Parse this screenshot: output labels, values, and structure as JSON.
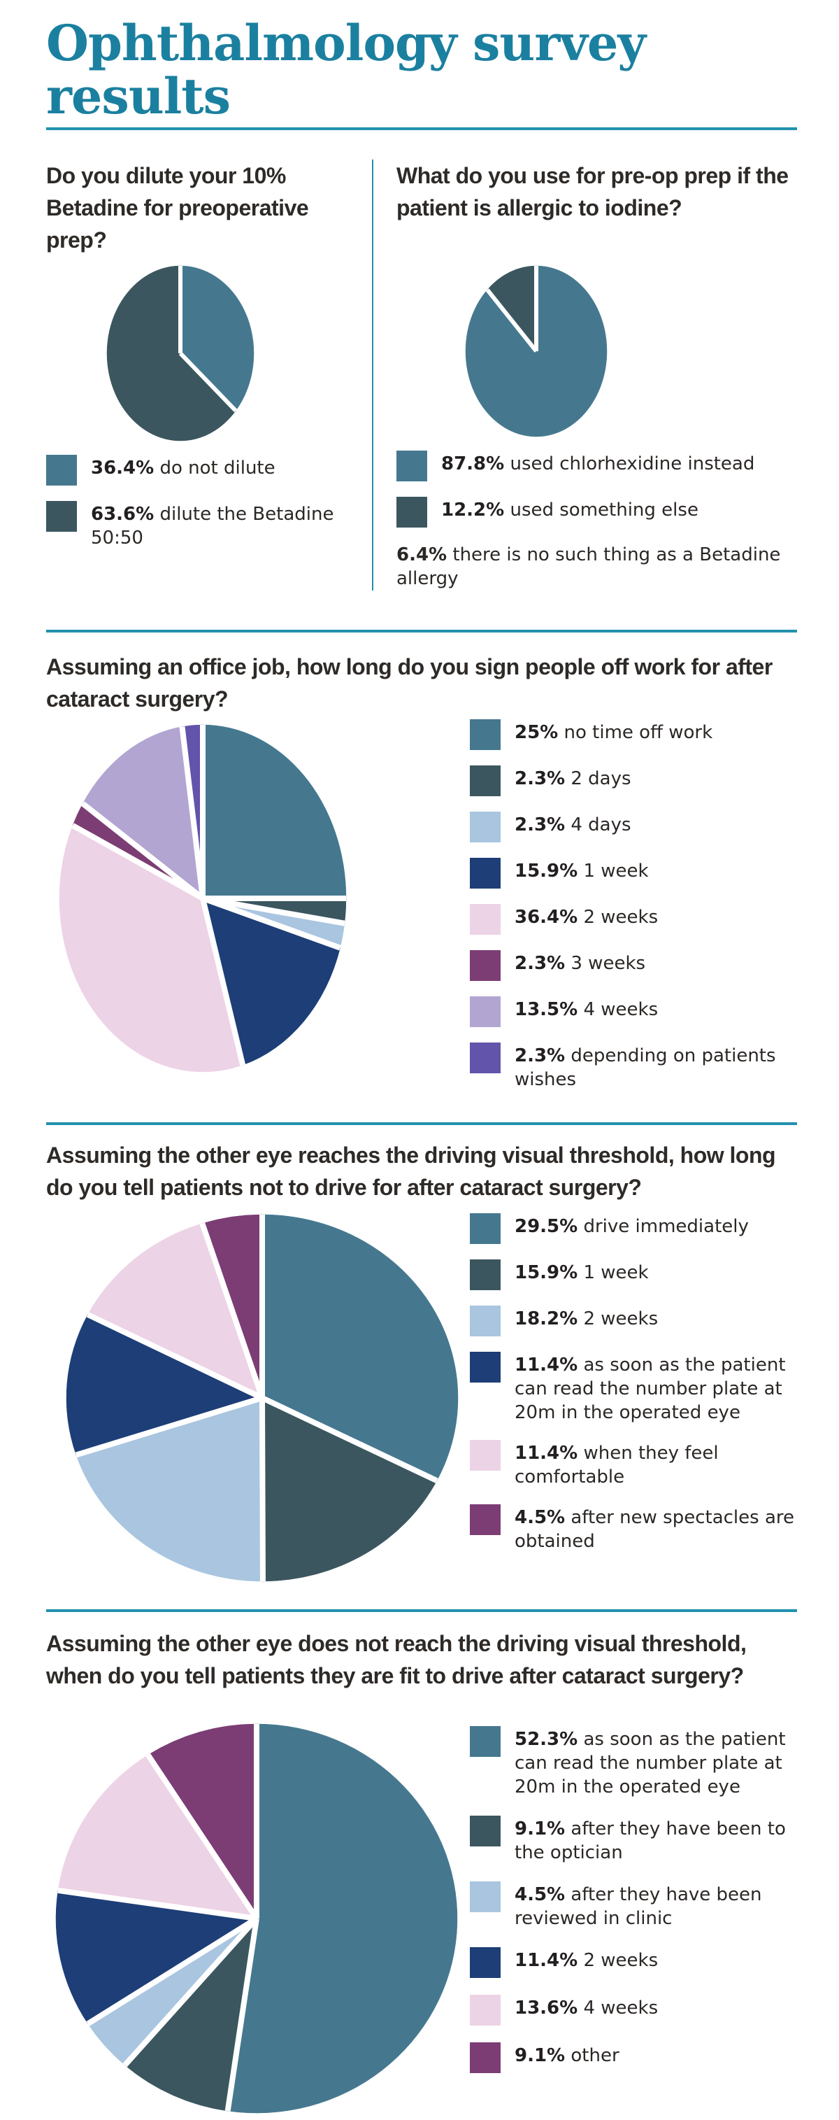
{
  "title": "Ophthalmology survey results",
  "theme": {
    "accent_teal": "#1B80A0",
    "rule_color": "#2291AE",
    "text_dark": "#2E2A27",
    "palette": {
      "teal": "#45788F",
      "dark_slate": "#3B565F",
      "light_blue": "#A9C5E0",
      "navy": "#1D3E77",
      "pale_pink": "#EDD3E6",
      "plum": "#7C3D74",
      "lavender": "#B3A5D2",
      "violet": "#6254AB"
    }
  },
  "chart_data": [
    {
      "id": "dilute-betadine",
      "type": "pie",
      "question": "Do you dilute your 10% Betadine for preoperative prep?",
      "unit": "%",
      "start_angle_deg": 0,
      "direction": "clockwise",
      "legend_position": "bottom",
      "values": [
        36.4,
        63.6
      ],
      "legend": [
        {
          "pct": "36.4%",
          "label": "do not dilute",
          "color": "#45788F"
        },
        {
          "pct": "63.6%",
          "label": "dilute the Betadine 50:50",
          "color": "#3B565F"
        }
      ]
    },
    {
      "id": "iodine-allergy-prep",
      "type": "pie",
      "question": "What do you use for pre-op prep if the patient is allergic to iodine?",
      "unit": "%",
      "start_angle_deg": 0,
      "direction": "clockwise",
      "legend_position": "bottom",
      "values": [
        87.8,
        12.2
      ],
      "legend": [
        {
          "pct": "87.8%",
          "label": "used chlorhexidine instead",
          "color": "#45788F"
        },
        {
          "pct": "12.2%",
          "label": "used something else",
          "color": "#3B565F"
        }
      ],
      "note": {
        "pct": "6.4%",
        "label": "there is no such thing as a Betadine allergy"
      }
    },
    {
      "id": "time-off-work",
      "type": "pie",
      "question": "Assuming an office job, how long do you sign people off work for after cataract surgery?",
      "unit": "%",
      "start_angle_deg": 0,
      "direction": "clockwise",
      "legend_position": "right",
      "values": [
        25,
        2.3,
        2.3,
        15.9,
        36.4,
        2.3,
        13.5,
        2.3
      ],
      "legend": [
        {
          "pct": "25%",
          "label": "no time off work",
          "color": "#45788F"
        },
        {
          "pct": "2.3%",
          "label": "2 days",
          "color": "#3B565F"
        },
        {
          "pct": "2.3%",
          "label": "4 days",
          "color": "#A9C5E0"
        },
        {
          "pct": "15.9%",
          "label": "1 week",
          "color": "#1D3E77"
        },
        {
          "pct": "36.4%",
          "label": "2 weeks",
          "color": "#EDD3E6"
        },
        {
          "pct": "2.3%",
          "label": "3 weeks",
          "color": "#7C3D74"
        },
        {
          "pct": "13.5%",
          "label": "4 weeks",
          "color": "#B3A5D2"
        },
        {
          "pct": "2.3%",
          "label": "depending on patients wishes",
          "color": "#6254AB"
        }
      ]
    },
    {
      "id": "driving-threshold-reached",
      "type": "pie",
      "question": "Assuming the other eye reaches the driving visual threshold, how long do you tell patients not to drive for after cataract surgery?",
      "unit": "%",
      "start_angle_deg": 0,
      "direction": "clockwise",
      "legend_position": "right",
      "values": [
        29.5,
        15.9,
        18.2,
        11.4,
        11.4,
        4.5
      ],
      "legend": [
        {
          "pct": "29.5%",
          "label": "drive immediately",
          "color": "#45788F"
        },
        {
          "pct": "15.9%",
          "label": "1 week",
          "color": "#3B565F"
        },
        {
          "pct": "18.2%",
          "label": "2 weeks",
          "color": "#A9C5E0"
        },
        {
          "pct": "11.4%",
          "label": "as soon as the patient can read the number plate at 20m in the operated eye",
          "color": "#1D3E77"
        },
        {
          "pct": "11.4%",
          "label": "when they feel comfortable",
          "color": "#EDD3E6"
        },
        {
          "pct": "4.5%",
          "label": "after new spectacles are obtained",
          "color": "#7C3D74"
        }
      ]
    },
    {
      "id": "driving-threshold-not-reached",
      "type": "pie",
      "question": "Assuming the other eye does not reach the driving visual threshold, when do you tell patients they are fit to drive after cataract surgery?",
      "unit": "%",
      "start_angle_deg": 0,
      "direction": "clockwise",
      "legend_position": "right",
      "values": [
        52.3,
        9.1,
        4.5,
        11.4,
        13.6,
        9.1
      ],
      "legend": [
        {
          "pct": "52.3%",
          "label": "as soon as the patient can read the number plate at 20m in the operated eye",
          "color": "#45788F"
        },
        {
          "pct": "9.1%",
          "label": "after they have been to the optician",
          "color": "#3B565F"
        },
        {
          "pct": "4.5%",
          "label": "after they have been reviewed in clinic",
          "color": "#A9C5E0"
        },
        {
          "pct": "11.4%",
          "label": "2 weeks",
          "color": "#1D3E77"
        },
        {
          "pct": "13.6%",
          "label": "4 weeks",
          "color": "#EDD3E6"
        },
        {
          "pct": "9.1%",
          "label": "other",
          "color": "#7C3D74"
        }
      ]
    }
  ]
}
